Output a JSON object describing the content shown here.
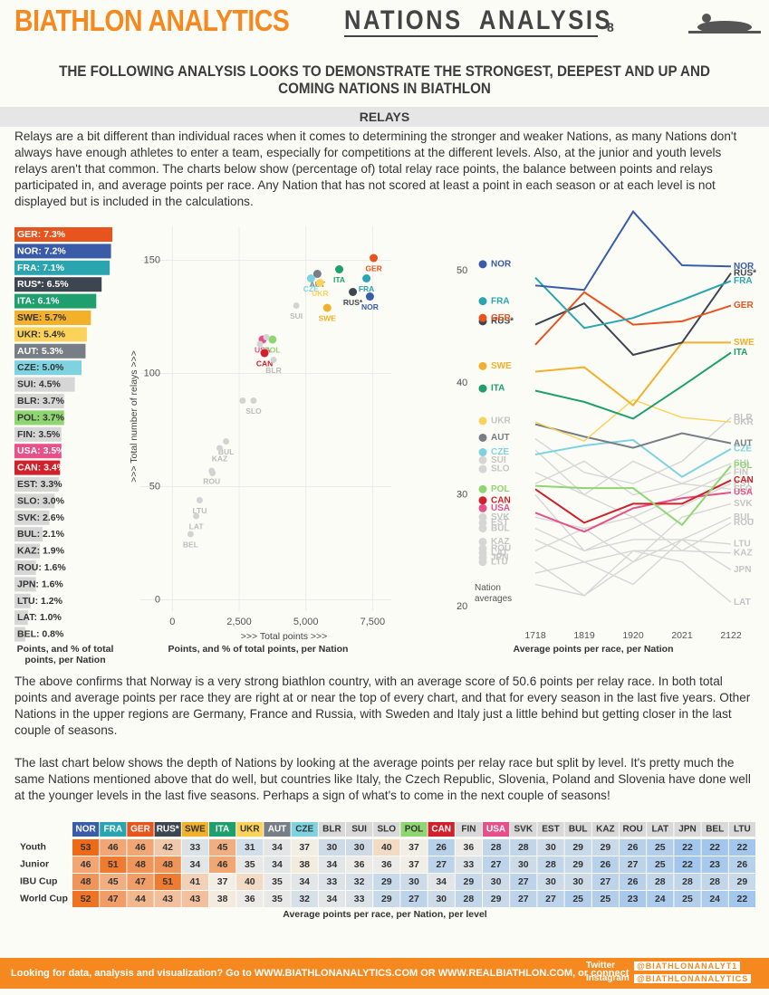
{
  "header": {
    "brand": "BIATHLON ANALYTICS",
    "title": "NATIONS  ANALYSIS",
    "page": "8"
  },
  "intro": "THE FOLLOWING ANALYSIS LOOKS TO DEMONSTRATE THE STRONGEST, DEEPEST AND UP AND COMING NATIONS IN BIATHLON",
  "section": "RELAYS",
  "paragraphs": [
    "Relays are a bit different than individual races when it comes to determining the stronger and weaker Nations, as many Nations don't always have enough athletes to enter a team, especially for competitions at the different levels. Also, at the junior and youth levels relays aren't that common. The charts below show (percentage of) total relay race points, the balance between points and relays participated in, and average points per race. Any Nation that has not scored at least a point in each season or at each level is not displayed but is included in the calculations.",
    "The above confirms that Norway is a very strong biathlon country, with an average score of 50.6 points per relay race. In both total points and average points per race they are right at or near the top of every chart, and that for every season in the last five years. Other Nations in the upper regions are Germany, France and Russia, with Sweden and Italy just a little behind but getting closer in the last couple of seasons.",
    "The last chart below shows the depth of Nations by looking at the average points per relay race but split by level. It's pretty much the same Nations mentioned above that do well, but countries like  Italy, the Czech Republic, Slovenia, Poland and Slovenia have done well at the younger levels in the last five seasons. Perhaps a sign of what's to come in the next couple of seasons!"
  ],
  "chart_data": [
    {
      "type": "bar",
      "orientation": "horizontal",
      "x_label": "Points, and % of total points, per Nation",
      "categories": [
        "GER",
        "NOR",
        "FRA",
        "RUS*",
        "ITA",
        "SWE",
        "UKR",
        "AUT",
        "CZE",
        "SUI",
        "BLR",
        "POL",
        "FIN",
        "USA",
        "CAN",
        "EST",
        "SLO",
        "SVK",
        "BUL",
        "KAZ",
        "ROU",
        "JPN",
        "LTU",
        "LAT",
        "BEL"
      ],
      "values": [
        7.3,
        7.2,
        7.1,
        6.5,
        6.1,
        5.7,
        5.4,
        5.3,
        5.0,
        4.5,
        3.7,
        3.7,
        3.5,
        3.5,
        3.4,
        3.3,
        3.0,
        2.6,
        2.1,
        1.9,
        1.6,
        1.6,
        1.2,
        1.0,
        0.8
      ],
      "value_labels": [
        "GER: 7.3%",
        "NOR: 7.2%",
        "FRA: 7.1%",
        "RUS*: 6.5%",
        "ITA: 6.1%",
        "SWE: 5.7%",
        "UKR: 5.4%",
        "AUT: 5.3%",
        "CZE: 5.0%",
        "SUI: 4.5%",
        "BLR: 3.7%",
        "POL: 3.7%",
        "FIN: 3.5%",
        "USA: 3.5%",
        "CAN: 3.4%",
        "EST: 3.3%",
        "SLO: 3.0%",
        "SVK: 2.6%",
        "BUL: 2.1%",
        "KAZ: 1.9%",
        "ROU: 1.6%",
        "JPN: 1.6%",
        "LTU: 1.2%",
        "LAT: 1.0%",
        "BEL: 0.8%"
      ],
      "colors": [
        "#e8541e",
        "#3a5ca8",
        "#2aa5b0",
        "#3d4650",
        "#1f9e6e",
        "#f2b02b",
        "#fbd35a",
        "#777e85",
        "#7fd3e0",
        "#d6d6d6",
        "#d6d6d6",
        "#8fd672",
        "#d6d6d6",
        "#e8508a",
        "#d0202c",
        "#d6d6d6",
        "#d6d6d6",
        "#d6d6d6",
        "#d6d6d6",
        "#d6d6d6",
        "#d6d6d6",
        "#d6d6d6",
        "#d6d6d6",
        "#d6d6d6",
        "#d6d6d6"
      ]
    },
    {
      "type": "scatter",
      "title": "Points, and % of total points, per Nation",
      "x_label": ">>> Total points >>>",
      "y_label": ">>> Total number of relays >>>",
      "xlim": [
        -1200,
        8200
      ],
      "ylim": [
        -5,
        165
      ],
      "xticks": [
        0,
        {
          "value": 2500,
          "label": "2,500"
        },
        {
          "value": 5000,
          "label": "5,000"
        },
        {
          "value": 7500,
          "label": "7,500"
        }
      ],
      "yticks": [
        0,
        50,
        100,
        150
      ],
      "grid": true,
      "labels": [
        "GER",
        "NOR",
        "FRA",
        "RUS*",
        "ITA",
        "AUT",
        "CZE",
        "UKR",
        "SWE",
        "SUI",
        "USA",
        "POL",
        "CAN",
        "BLR",
        null,
        null,
        null,
        "SLO",
        "BUL",
        "KAZ",
        "ROU",
        null,
        "LTU",
        "LAT",
        "BEL"
      ],
      "x": [
        7540,
        7400,
        7270,
        6760,
        6250,
        5430,
        5190,
        5530,
        5800,
        4640,
        3380,
        3750,
        3450,
        3790,
        3280,
        3520,
        2630,
        3040,
        2010,
        1770,
        1470,
        1500,
        1020,
        890,
        680
      ],
      "y": [
        151,
        134,
        142,
        136,
        146,
        144,
        142,
        140,
        129,
        130,
        115,
        115,
        109,
        106,
        113,
        116,
        88,
        88,
        70,
        67,
        57,
        56,
        44,
        37,
        29
      ],
      "colors": [
        "#e8541e",
        "#3a5ca8",
        "#2aa5b0",
        "#3d4650",
        "#1f9e6e",
        "#777e85",
        "#7fd3e0",
        "#fbd35a",
        "#f2b02b",
        "#d3d3d3",
        "#e8508a",
        "#8fd672",
        "#d0202c",
        "#d3d3d3",
        "#d3d3d3",
        "#d3d3d3",
        "#d3d3d3",
        "#d3d3d3",
        "#d3d3d3",
        "#d3d3d3",
        "#d3d3d3",
        "#d3d3d3",
        "#d3d3d3",
        "#d3d3d3",
        "#d3d3d3"
      ]
    },
    {
      "type": "line",
      "x_label": "Average points per race, per Nation",
      "annotation": "Nation averages",
      "categories": [
        "1718",
        "1819",
        "1920",
        "2021",
        "2122"
      ],
      "ylim": [
        18.8,
        55.6
      ],
      "yticks": [
        20,
        30,
        40,
        50
      ],
      "series": [
        {
          "name": "SUI",
          "color": "#d6d6d6",
          "values": [
            34,
            30,
            33,
            31,
            32.8
          ],
          "average": 33.1
        },
        {
          "name": "BLR",
          "color": "#d6d6d6",
          "values": [
            35,
            32,
            31,
            33,
            36.9
          ],
          "average": null
        },
        {
          "name": "FIN",
          "color": "#d6d6d6",
          "values": [
            32,
            30,
            28,
            30,
            32
          ],
          "average": null
        },
        {
          "name": "EST",
          "color": "#d6d6d6",
          "values": [
            30,
            25,
            27,
            29,
            31
          ],
          "average": 27.5
        },
        {
          "name": "SLO",
          "color": "#d6d6d6",
          "values": [
            31,
            33,
            30,
            31,
            30.5
          ],
          "average": 32.3
        },
        {
          "name": "SVK",
          "color": "#d6d6d6",
          "values": [
            28,
            27,
            24,
            28,
            29.2
          ],
          "average": 28.0
        },
        {
          "name": "BUL",
          "color": "#d6d6d6",
          "values": [
            27,
            25,
            26,
            26,
            28
          ],
          "average": 27.0
        },
        {
          "name": "KAZ",
          "color": "#d6d6d6",
          "values": [
            25,
            27,
            28,
            25,
            24.8
          ],
          "average": 25.8
        },
        {
          "name": "ROU",
          "color": "#d6d6d6",
          "values": [
            26,
            24,
            25,
            25,
            27.5
          ],
          "average": 25.2
        },
        {
          "name": "JPN",
          "color": "#d6d6d6",
          "values": [
            23,
            24,
            22,
            26,
            23.3
          ],
          "average": 24.4
        },
        {
          "name": "LTU",
          "color": "#d6d6d6",
          "values": [
            24,
            21,
            24,
            26,
            25.6
          ],
          "average": 24.0
        },
        {
          "name": "LAT",
          "color": "#d6d6d6",
          "values": [
            22,
            21,
            25,
            24,
            20.4
          ],
          "average": 24.8
        },
        {
          "name": "USA",
          "color": "#e8508a",
          "values": [
            28.4,
            26.7,
            28.8,
            29.7,
            30.2
          ],
          "average": 28.8
        },
        {
          "name": "CAN",
          "color": "#d0202c",
          "values": [
            30.5,
            27.5,
            29.2,
            29.2,
            31.3
          ],
          "average": 29.5
        },
        {
          "name": "POL",
          "color": "#8fd672",
          "values": [
            30.8,
            30.6,
            30.6,
            27.3,
            32.6
          ],
          "average": 30.5
        },
        {
          "name": "CZE",
          "color": "#7fd3e0",
          "values": [
            33.6,
            34.4,
            34.9,
            31.6,
            34.1
          ],
          "average": 33.8
        },
        {
          "name": "AUT",
          "color": "#777e85",
          "values": [
            36.3,
            35.2,
            34.2,
            35.5,
            34.6
          ],
          "average": 35.1
        },
        {
          "name": "UKR",
          "color": "#fbd35a",
          "values": [
            36.5,
            34.8,
            38.5,
            36.9,
            36.5
          ],
          "average": 36.6
        },
        {
          "name": "SWE",
          "color": "#f2b02b",
          "values": [
            41.0,
            41.4,
            38.0,
            43.6,
            43.6
          ],
          "average": 41.5
        },
        {
          "name": "ITA",
          "color": "#1f9e6e",
          "values": [
            39.3,
            38.3,
            36.8,
            39.7,
            42.7
          ],
          "average": 39.5
        },
        {
          "name": "RUS*",
          "color": "#3d4650",
          "values": [
            45.2,
            47.1,
            42.5,
            43.6,
            49.8
          ],
          "average": 45.5
        },
        {
          "name": "GER",
          "color": "#e8541e",
          "values": [
            43.4,
            48.1,
            45.2,
            45.5,
            46.9
          ],
          "average": 45.8
        },
        {
          "name": "FRA",
          "color": "#2aa5b0",
          "values": [
            49.4,
            44.9,
            45.8,
            47.4,
            49.1
          ],
          "average": 47.3
        },
        {
          "name": "NOR",
          "color": "#3a5ca8",
          "values": [
            48.7,
            48.3,
            55.3,
            50.5,
            50.4
          ],
          "average": 50.6
        }
      ]
    }
  ],
  "table": {
    "caption": "Average points  per race,  per Nation, per level",
    "columns": [
      "NOR",
      "FRA",
      "GER",
      "RUS*",
      "SWE",
      "ITA",
      "UKR",
      "AUT",
      "CZE",
      "BLR",
      "SUI",
      "SLO",
      "POL",
      "CAN",
      "FIN",
      "USA",
      "SVK",
      "EST",
      "BUL",
      "KAZ",
      "ROU",
      "LAT",
      "JPN",
      "BEL",
      "LTU"
    ],
    "column_colors": [
      "#3a5ca8",
      "#2aa5b0",
      "#e8541e",
      "#3d4650",
      "#f2b02b",
      "#1f9e6e",
      "#fbd35a",
      "#777e85",
      "#7fd3e0",
      "#d9d9d9",
      "#d9d9d9",
      "#d9d9d9",
      "#8fd672",
      "#d0202c",
      "#d9d9d9",
      "#e8508a",
      "#d9d9d9",
      "#d9d9d9",
      "#d9d9d9",
      "#d9d9d9",
      "#d9d9d9",
      "#d9d9d9",
      "#d9d9d9",
      "#d9d9d9",
      "#d9d9d9"
    ],
    "color_scale": [
      "#a3c6ec",
      "#f4efe6",
      "#ee6a16"
    ],
    "rows": [
      {
        "label": "Youth",
        "values": [
          53,
          46,
          46,
          42,
          33,
          45,
          31,
          34,
          37,
          30,
          30,
          40,
          37,
          26,
          36,
          28,
          28,
          30,
          29,
          29,
          26,
          25,
          22,
          22,
          22
        ]
      },
      {
        "label": "Junior",
        "values": [
          46,
          51,
          48,
          48,
          34,
          46,
          35,
          34,
          38,
          34,
          36,
          36,
          37,
          27,
          33,
          27,
          30,
          28,
          29,
          26,
          27,
          25,
          22,
          23,
          26
        ]
      },
      {
        "label": "IBU Cup",
        "values": [
          48,
          45,
          47,
          51,
          41,
          37,
          40,
          35,
          34,
          33,
          32,
          29,
          30,
          34,
          29,
          30,
          27,
          30,
          30,
          27,
          26,
          28,
          28,
          28,
          29
        ]
      },
      {
        "label": "World Cup",
        "values": [
          52,
          47,
          44,
          43,
          43,
          38,
          36,
          35,
          32,
          34,
          33,
          29,
          27,
          30,
          28,
          29,
          27,
          27,
          25,
          25,
          23,
          24,
          25,
          24,
          22
        ]
      }
    ]
  },
  "footer": {
    "text": "Looking for data, analysis and visualization? Go to WWW.BIATHLONANALYTICS.COM OR WWW.REALBIATHLON.COM, or connect",
    "twitter": "Twitter",
    "instagram": "Instagram",
    "twitter_handle": "@BIATHLONANALYT1",
    "instagram_handle": "@BIATHLONANALYTICS"
  }
}
